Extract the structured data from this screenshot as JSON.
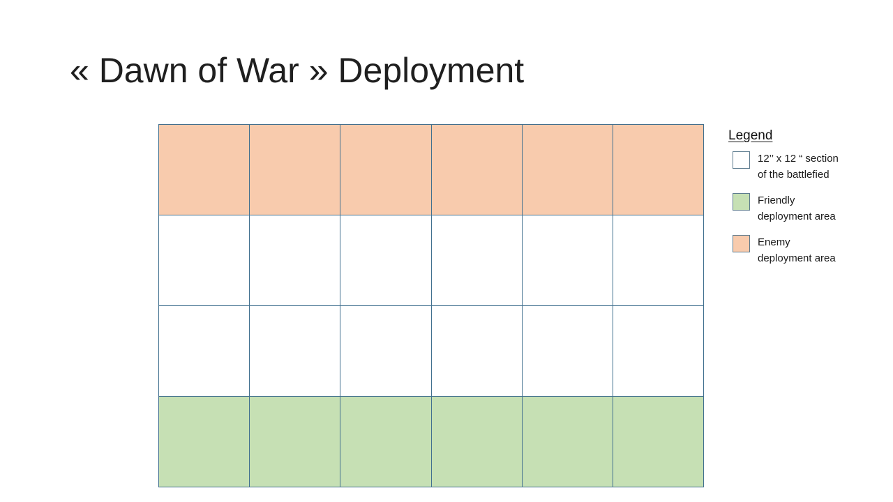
{
  "slide": {
    "title": "« Dawn of War » Deployment"
  },
  "grid": {
    "rows": 4,
    "cols": 6,
    "row_fills": [
      "enemy",
      "neutral",
      "neutral",
      "friendly"
    ],
    "colors": {
      "enemy": "#F8CBAD",
      "friendly": "#C6E0B4",
      "neutral": "#FFFFFF",
      "border": "#41708F"
    }
  },
  "legend": {
    "title": "Legend",
    "swatch_border": "#5D7B8E",
    "items": [
      {
        "swatch": "neutral",
        "lines": [
          "12’’ x 12 “ section",
          "of the battlefied"
        ]
      },
      {
        "swatch": "friendly",
        "lines": [
          "Friendly",
          "deployment area"
        ]
      },
      {
        "swatch": "enemy",
        "lines": [
          "Enemy",
          "deployment area"
        ]
      }
    ]
  }
}
